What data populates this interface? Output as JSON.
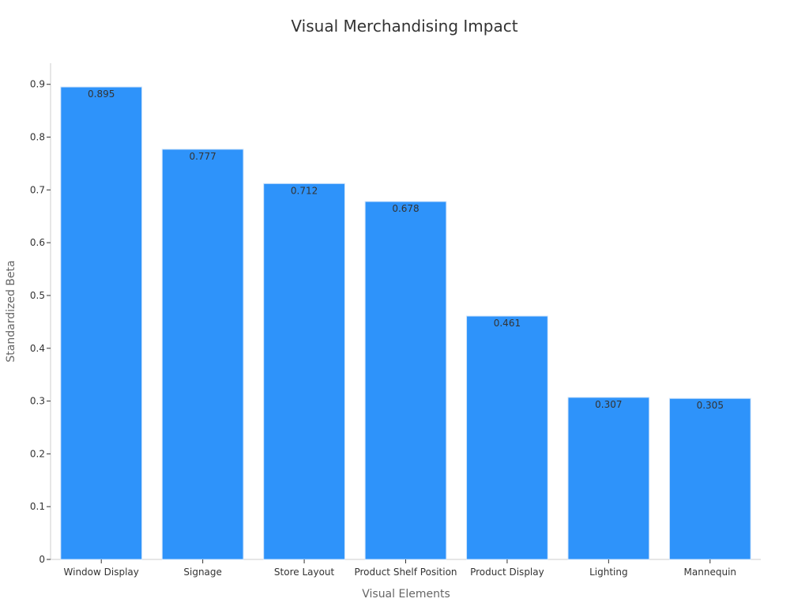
{
  "chart_data": {
    "type": "bar",
    "title": "Visual Merchandising Impact",
    "xlabel": "Visual Elements",
    "ylabel": "Standardized Beta",
    "categories": [
      "Window Display",
      "Signage",
      "Store Layout",
      "Product Shelf Position",
      "Product Display",
      "Lighting",
      "Mannequin"
    ],
    "values": [
      0.895,
      0.777,
      0.712,
      0.678,
      0.461,
      0.307,
      0.305
    ],
    "data_labels": [
      "0.895",
      "0.777",
      "0.712",
      "0.678",
      "0.461",
      "0.307",
      "0.305"
    ],
    "y_ticks": [
      0,
      0.1,
      0.2,
      0.3,
      0.4,
      0.5,
      0.6,
      0.7,
      0.8,
      0.9
    ],
    "y_tick_labels": [
      "0",
      "0.1",
      "0.2",
      "0.3",
      "0.4",
      "0.5",
      "0.6",
      "0.7",
      "0.8",
      "0.9"
    ],
    "ylim": [
      0,
      0.94
    ],
    "grid": false,
    "legend": "none",
    "colors": {
      "bar": "#2e93fa",
      "bar_edge": "#d0e4fb",
      "title": "#333333",
      "axis_label": "#666666",
      "tick_label": "#333333",
      "data_label": "#333333",
      "axis_line": "#cccccc"
    }
  }
}
